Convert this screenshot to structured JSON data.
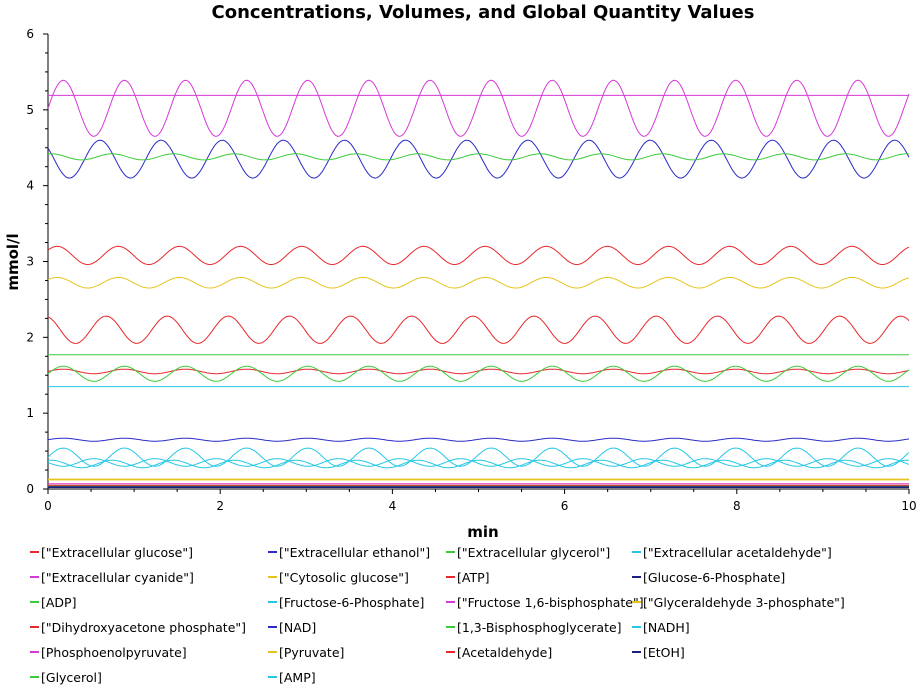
{
  "chart_data": {
    "type": "line",
    "title": "Concentrations, Volumes, and Global Quantity Values",
    "xlabel": "min",
    "ylabel": "mmol/l",
    "xlim": [
      0,
      10
    ],
    "ylim": [
      0,
      6
    ],
    "xticks": [
      "0",
      "2",
      "4",
      "6",
      "8",
      "10"
    ],
    "yticks": [
      "0",
      "1",
      "2",
      "3",
      "4",
      "5",
      "6"
    ],
    "grid": false,
    "legend_position": "bottom",
    "series": [
      {
        "name": "[\"Extracellular glucose\"]",
        "color": "#e8282b",
        "baseline": 1.55,
        "amplitude": 0.03,
        "period": 0.71,
        "phase": 0.0
      },
      {
        "name": "[\"Extracellular ethanol\"]",
        "color": "#2a2ac9",
        "baseline": 0.65,
        "amplitude": 0.02,
        "period": 0.71,
        "phase": 0.0
      },
      {
        "name": "[\"Extracellular glycerol\"]",
        "color": "#3acb3a",
        "baseline": 1.77,
        "amplitude": 0.0,
        "period": 0.71,
        "phase": 0.0
      },
      {
        "name": "[\"Extracellular acetaldehyde\"]",
        "color": "#25c7e6",
        "baseline": 1.35,
        "amplitude": 0.0,
        "period": 0.71,
        "phase": 0.0
      },
      {
        "name": "[\"Extracellular cyanide\"]",
        "color": "#d63ad6",
        "baseline": 0.07,
        "amplitude": 0.0,
        "period": 0.71,
        "phase": 0.0
      },
      {
        "name": "[\"Cytosolic glucose\"]",
        "color": "#e6c41e",
        "baseline": 0.12,
        "amplitude": 0.0,
        "period": 0.71,
        "phase": 0.0
      },
      {
        "name": "[ATP]",
        "color": "#e8282b",
        "baseline": 2.1,
        "amplitude": 0.18,
        "period": 0.71,
        "phase": 0.3
      },
      {
        "name": "[Glucose-6-Phosphate]",
        "color": "#1e1e80",
        "baseline": 0.02,
        "amplitude": 0.0,
        "period": 0.71,
        "phase": 0.0
      },
      {
        "name": "[ADP]",
        "color": "#3acb3a",
        "baseline": 1.52,
        "amplitude": 0.1,
        "period": 0.71,
        "phase": 0.0
      },
      {
        "name": "[Fructose-6-Phosphate]",
        "color": "#25c7e6",
        "baseline": 0.35,
        "amplitude": 0.05,
        "period": 0.71,
        "phase": 0.5
      },
      {
        "name": "[\"Fructose 1,6-bisphosphate\"]",
        "color": "#d63ad6",
        "baseline": 5.02,
        "amplitude": 0.37,
        "period": 0.71,
        "phase": 0.0
      },
      {
        "name": "[\"Glyceraldehyde 3-phosphate\"]",
        "color": "#e6c41e",
        "baseline": 2.72,
        "amplitude": 0.07,
        "period": 0.71,
        "phase": 0.1
      },
      {
        "name": "[\"Dihydroxyacetone phosphate\"]",
        "color": "#e8282b",
        "baseline": 3.08,
        "amplitude": 0.12,
        "period": 0.71,
        "phase": 0.1
      },
      {
        "name": "[NAD]",
        "color": "#2a2ac9",
        "baseline": 4.35,
        "amplitude": 0.25,
        "period": 0.71,
        "phase": 0.4
      },
      {
        "name": "[1,3-Bisphosphoglycerate]",
        "color": "#3acb3a",
        "baseline": 0.04,
        "amplitude": 0.0,
        "period": 0.71,
        "phase": 0.0
      },
      {
        "name": "[NADH]",
        "color": "#25c7e6",
        "baseline": 0.42,
        "amplitude": 0.12,
        "period": 0.71,
        "phase": 0.0
      },
      {
        "name": "[Phosphoenolpyruvate]",
        "color": "#d63ad6",
        "baseline": 5.19,
        "amplitude": 0.0,
        "period": 0.71,
        "phase": 0.0
      },
      {
        "name": "[Pyruvate]",
        "color": "#e6c41e",
        "baseline": 0.13,
        "amplitude": 0.0,
        "period": 0.71,
        "phase": 0.0
      },
      {
        "name": "[Acetaldehyde]",
        "color": "#e8282b",
        "baseline": 0.05,
        "amplitude": 0.0,
        "period": 0.71,
        "phase": 0.0
      },
      {
        "name": "[EtOH]",
        "color": "#1e1e80",
        "baseline": 0.03,
        "amplitude": 0.0,
        "period": 0.71,
        "phase": 0.0
      },
      {
        "name": "[Glycerol]",
        "color": "#3acb3a",
        "baseline": 4.38,
        "amplitude": 0.04,
        "period": 0.71,
        "phase": 0.2
      },
      {
        "name": "[AMP]",
        "color": "#25c7e6",
        "baseline": 0.33,
        "amplitude": 0.05,
        "period": 0.71,
        "phase": 0.2
      }
    ]
  }
}
